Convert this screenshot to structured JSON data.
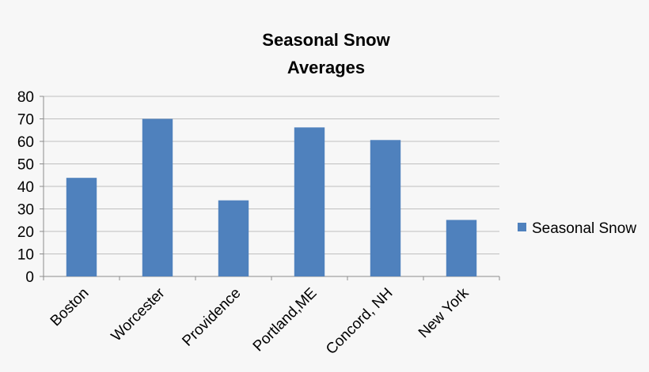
{
  "chart_data": {
    "type": "bar",
    "title_lines": [
      "Seasonal Snow",
      "Averages"
    ],
    "categories": [
      "Boston",
      "Worcester",
      "Providence",
      "Portland,ME",
      "Concord, NH",
      "New York"
    ],
    "series": [
      {
        "name": "Seasonal Snow",
        "values": [
          43.8,
          70.0,
          33.8,
          66.2,
          60.6,
          25.1
        ]
      }
    ],
    "ylim": [
      0,
      80
    ],
    "yticks": [
      0,
      10,
      20,
      30,
      40,
      50,
      60,
      70,
      80
    ],
    "grid": true,
    "legend_position": "right",
    "bar_color": "#4f81bd",
    "grid_color": "#bfbfbf",
    "axis_color": "#8c8c8c"
  }
}
